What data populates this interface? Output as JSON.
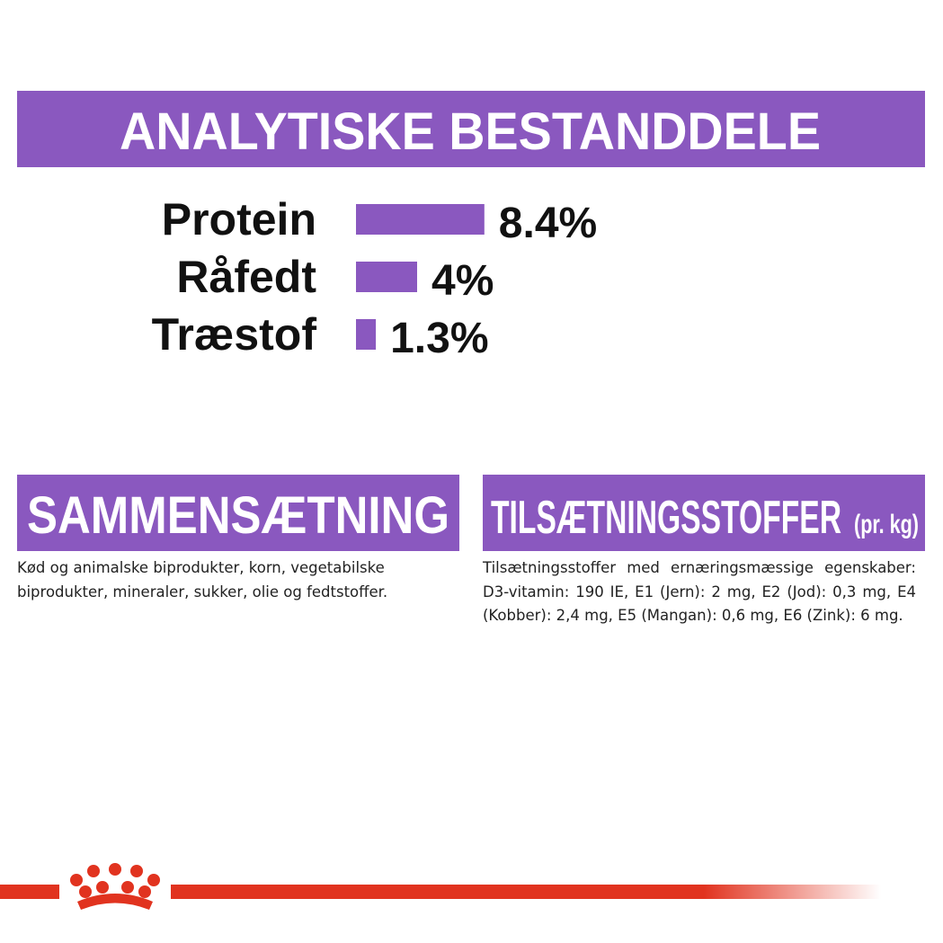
{
  "analysis": {
    "title": "ANALYTISKE BESTANDDELE",
    "items": [
      {
        "name": "Protein",
        "value": 8.4,
        "label": "8.4%"
      },
      {
        "name": "Råfedt",
        "value": 4,
        "label": "4%"
      },
      {
        "name": "Træstof",
        "value": 1.3,
        "label": "1.3%"
      }
    ],
    "color": "#8a58bf"
  },
  "composition": {
    "title": "SAMMENSÆTNING",
    "text": "Kød og animalske biprodukter, korn, vegetabilske biprodukter, mineraler, sukker, olie og fedtstoffer."
  },
  "additives": {
    "title": "TILSÆTNINGSSTOFFER",
    "unit": "(pr. kg)",
    "text": "Tilsætningsstoffer med ernæringsmæssige egenskaber: D3-vitamin: 190 IE, E1 (Jern): 2 mg, E2 (Jod): 0,3 mg, E4 (Kobber): 2,4 mg, E5 (Mangan): 0,6 mg, E6 (Zink): 6 mg."
  }
}
